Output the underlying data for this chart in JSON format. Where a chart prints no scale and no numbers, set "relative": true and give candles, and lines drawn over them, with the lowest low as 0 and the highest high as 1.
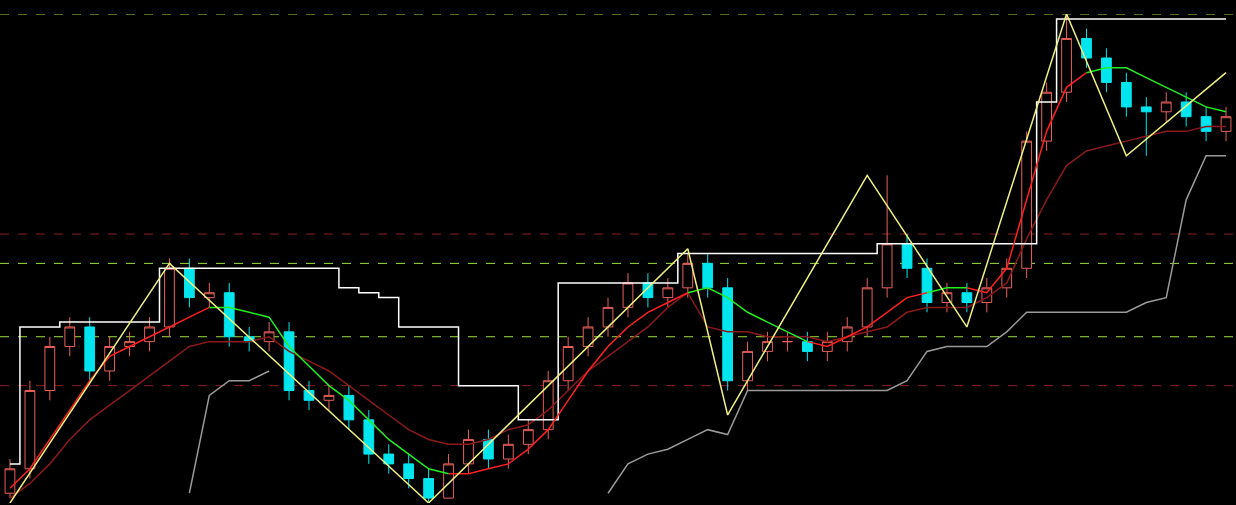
{
  "chart_data": {
    "type": "candlestick",
    "relative": true,
    "grid": false,
    "categories": [
      null,
      null,
      null,
      null,
      null,
      null,
      null,
      null,
      null,
      null,
      null,
      null,
      null,
      null,
      null,
      null,
      null,
      null,
      null,
      null,
      null,
      null,
      null,
      null,
      null,
      null,
      null,
      null,
      null,
      null,
      null,
      null,
      null,
      null,
      null,
      null,
      null,
      null,
      null,
      null,
      null,
      null,
      null,
      null,
      null,
      null,
      null,
      null,
      null,
      null,
      null,
      null,
      null,
      null,
      null,
      null,
      null,
      null,
      null,
      null,
      null,
      null
    ],
    "ohlc": [
      [
        0.02,
        0.09,
        0.01,
        0.07
      ],
      [
        0.07,
        0.25,
        0.05,
        0.23
      ],
      [
        0.23,
        0.34,
        0.21,
        0.32
      ],
      [
        0.32,
        0.38,
        0.3,
        0.36
      ],
      [
        0.36,
        0.38,
        0.25,
        0.27
      ],
      [
        0.27,
        0.34,
        0.25,
        0.32
      ],
      [
        0.32,
        0.35,
        0.3,
        0.33
      ],
      [
        0.33,
        0.38,
        0.31,
        0.36
      ],
      [
        0.36,
        0.5,
        0.34,
        0.48
      ],
      [
        0.48,
        0.5,
        0.4,
        0.42
      ],
      [
        0.42,
        0.45,
        0.4,
        0.43
      ],
      [
        0.43,
        0.45,
        0.32,
        0.34
      ],
      [
        0.34,
        0.36,
        0.31,
        0.33
      ],
      [
        0.33,
        0.37,
        0.31,
        0.35
      ],
      [
        0.35,
        0.37,
        0.21,
        0.23
      ],
      [
        0.23,
        0.25,
        0.19,
        0.21
      ],
      [
        0.21,
        0.24,
        0.19,
        0.22
      ],
      [
        0.22,
        0.24,
        0.15,
        0.17
      ],
      [
        0.17,
        0.19,
        0.08,
        0.1
      ],
      [
        0.1,
        0.12,
        0.06,
        0.08
      ],
      [
        0.08,
        0.1,
        0.03,
        0.05
      ],
      [
        0.05,
        0.07,
        0.0,
        0.01
      ],
      [
        0.01,
        0.1,
        0.01,
        0.08
      ],
      [
        0.08,
        0.15,
        0.06,
        0.13
      ],
      [
        0.13,
        0.15,
        0.07,
        0.09
      ],
      [
        0.09,
        0.14,
        0.07,
        0.12
      ],
      [
        0.12,
        0.17,
        0.1,
        0.15
      ],
      [
        0.15,
        0.27,
        0.13,
        0.25
      ],
      [
        0.25,
        0.34,
        0.23,
        0.32
      ],
      [
        0.32,
        0.38,
        0.3,
        0.36
      ],
      [
        0.36,
        0.42,
        0.34,
        0.4
      ],
      [
        0.4,
        0.47,
        0.38,
        0.45
      ],
      [
        0.45,
        0.47,
        0.4,
        0.42
      ],
      [
        0.42,
        0.46,
        0.4,
        0.44
      ],
      [
        0.44,
        0.51,
        0.42,
        0.49
      ],
      [
        0.49,
        0.51,
        0.42,
        0.44
      ],
      [
        0.44,
        0.46,
        0.23,
        0.25
      ],
      [
        0.25,
        0.33,
        0.23,
        0.31
      ],
      [
        0.31,
        0.35,
        0.29,
        0.33
      ],
      [
        0.33,
        0.35,
        0.31,
        0.33
      ],
      [
        0.33,
        0.35,
        0.29,
        0.31
      ],
      [
        0.31,
        0.35,
        0.29,
        0.33
      ],
      [
        0.33,
        0.38,
        0.31,
        0.36
      ],
      [
        0.36,
        0.46,
        0.34,
        0.44
      ],
      [
        0.44,
        0.67,
        0.42,
        0.53
      ],
      [
        0.53,
        0.55,
        0.46,
        0.48
      ],
      [
        0.48,
        0.5,
        0.39,
        0.41
      ],
      [
        0.41,
        0.45,
        0.39,
        0.43
      ],
      [
        0.43,
        0.45,
        0.39,
        0.41
      ],
      [
        0.41,
        0.46,
        0.39,
        0.44
      ],
      [
        0.44,
        0.5,
        0.42,
        0.48
      ],
      [
        0.48,
        0.76,
        0.46,
        0.74
      ],
      [
        0.74,
        0.86,
        0.72,
        0.84
      ],
      [
        0.84,
        1.0,
        0.82,
        0.95
      ],
      [
        0.95,
        0.97,
        0.89,
        0.91
      ],
      [
        0.91,
        0.93,
        0.84,
        0.86
      ],
      [
        0.86,
        0.88,
        0.79,
        0.81
      ],
      [
        0.81,
        0.83,
        0.71,
        0.8
      ],
      [
        0.8,
        0.84,
        0.78,
        0.82
      ],
      [
        0.82,
        0.84,
        0.77,
        0.79
      ],
      [
        0.79,
        0.81,
        0.74,
        0.76
      ],
      [
        0.76,
        0.81,
        0.74,
        0.79
      ]
    ],
    "colors": [
      "#e8605a",
      "#e8605a",
      "#e8605a",
      "#e8605a",
      "#00e5ee",
      "#e8605a",
      "#e8605a",
      "#e8605a",
      "#e8605a",
      "#00e5ee",
      "#e8605a",
      "#00e5ee",
      "#00e5ee",
      "#e8605a",
      "#00e5ee",
      "#00e5ee",
      "#e8605a",
      "#00e5ee",
      "#00e5ee",
      "#00e5ee",
      "#00e5ee",
      "#00e5ee",
      "#e8605a",
      "#e8605a",
      "#00e5ee",
      "#e8605a",
      "#e8605a",
      "#e8605a",
      "#e8605a",
      "#e8605a",
      "#e8605a",
      "#e8605a",
      "#00e5ee",
      "#e8605a",
      "#e8605a",
      "#00e5ee",
      "#00e5ee",
      "#e8605a",
      "#e8605a",
      "#e8605a",
      "#00e5ee",
      "#e8605a",
      "#e8605a",
      "#e8605a",
      "#e8605a",
      "#00e5ee",
      "#00e5ee",
      "#e8605a",
      "#00e5ee",
      "#e8605a",
      "#e8605a",
      "#e8605a",
      "#e8605a",
      "#e8605a",
      "#00e5ee",
      "#00e5ee",
      "#00e5ee",
      "#00e5ee",
      "#e8605a",
      "#00e5ee",
      "#00e5ee",
      "#e8605a"
    ],
    "series": [
      {
        "type": "line",
        "color": "#8b1a1a",
        "values": [
          0.01,
          0.04,
          0.08,
          0.13,
          0.17,
          0.2,
          0.23,
          0.26,
          0.29,
          0.32,
          0.33,
          0.33,
          0.33,
          0.34,
          0.31,
          0.29,
          0.27,
          0.24,
          0.21,
          0.18,
          0.15,
          0.13,
          0.12,
          0.12,
          0.13,
          0.15,
          0.16,
          0.19,
          0.23,
          0.27,
          0.3,
          0.33,
          0.36,
          0.4,
          0.43,
          0.36,
          0.35,
          0.35,
          0.34,
          0.34,
          0.34,
          0.33,
          0.34,
          0.35,
          0.36,
          0.39,
          0.4,
          0.4,
          0.4,
          0.42,
          0.45,
          0.54,
          0.62,
          0.69,
          0.72,
          0.73,
          0.74,
          0.75,
          0.76,
          0.76,
          0.77,
          0.77
        ]
      },
      {
        "type": "line",
        "color": "#9a9a9a",
        "values": [
          null,
          null,
          null,
          null,
          null,
          null,
          null,
          null,
          null,
          0.02,
          0.22,
          0.25,
          0.25,
          0.27,
          null,
          null,
          null,
          null,
          null,
          null,
          null,
          null,
          null,
          null,
          null,
          null,
          null,
          null,
          null,
          null,
          0.02,
          0.08,
          0.1,
          0.11,
          0.13,
          0.15,
          0.14,
          0.23,
          0.23,
          0.23,
          0.23,
          0.23,
          0.23,
          0.23,
          0.23,
          0.25,
          0.31,
          0.32,
          0.32,
          0.32,
          0.35,
          0.39,
          0.39,
          0.39,
          0.39,
          0.39,
          0.39,
          0.41,
          0.42,
          0.62,
          0.71,
          0.71
        ]
      },
      {
        "type": "step",
        "color": "#ffffff",
        "values": [
          0.08,
          0.36,
          0.36,
          0.37,
          0.37,
          0.37,
          0.37,
          0.37,
          0.48,
          0.48,
          0.48,
          0.48,
          0.48,
          0.48,
          0.48,
          0.48,
          0.48,
          0.44,
          0.43,
          0.42,
          0.36,
          0.36,
          0.36,
          0.24,
          0.24,
          0.24,
          0.17,
          0.17,
          0.45,
          0.45,
          0.45,
          0.45,
          0.45,
          0.45,
          0.51,
          0.51,
          0.51,
          0.51,
          0.51,
          0.51,
          0.51,
          0.51,
          0.51,
          0.51,
          0.53,
          0.53,
          0.53,
          0.53,
          0.53,
          0.53,
          0.53,
          0.53,
          0.82,
          0.99,
          0.99,
          0.99,
          0.99,
          0.99,
          0.99,
          0.99,
          0.99,
          0.99
        ]
      },
      {
        "type": "line",
        "color": "#ff2020",
        "values": [
          0.03,
          0.07,
          0.13,
          0.19,
          0.25,
          0.3,
          0.32,
          0.34,
          0.36,
          0.38,
          0.4,
          null,
          null,
          null,
          null,
          null,
          null,
          null,
          null,
          null,
          null,
          null,
          0.06,
          0.06,
          0.07,
          0.08,
          0.11,
          0.15,
          0.21,
          0.27,
          0.32,
          0.36,
          0.39,
          0.41,
          0.43,
          null,
          null,
          null,
          null,
          null,
          0.33,
          0.32,
          0.34,
          0.36,
          0.39,
          0.42,
          0.43,
          null,
          0.44,
          0.43,
          0.48,
          0.62,
          0.76,
          0.85,
          0.88,
          null,
          null,
          null,
          null,
          null,
          null,
          null
        ]
      },
      {
        "type": "line",
        "color": "#22ee22",
        "values": [
          null,
          null,
          null,
          null,
          null,
          null,
          null,
          null,
          null,
          null,
          0.4,
          0.4,
          0.39,
          0.38,
          0.32,
          0.28,
          0.24,
          0.21,
          0.17,
          0.13,
          0.1,
          0.07,
          0.06,
          null,
          null,
          null,
          null,
          null,
          null,
          null,
          null,
          null,
          null,
          null,
          0.43,
          0.44,
          0.42,
          0.39,
          0.37,
          0.35,
          0.33,
          null,
          null,
          null,
          null,
          null,
          0.43,
          0.44,
          0.44,
          null,
          null,
          null,
          null,
          null,
          0.88,
          0.89,
          0.89,
          0.87,
          0.85,
          0.83,
          0.81,
          0.8
        ]
      },
      {
        "type": "line",
        "color": "#f0f080",
        "values": [
          0.0,
          null,
          null,
          null,
          null,
          null,
          null,
          null,
          0.49,
          null,
          null,
          null,
          null,
          null,
          null,
          null,
          null,
          null,
          null,
          null,
          null,
          0.0,
          null,
          null,
          null,
          null,
          null,
          null,
          null,
          null,
          null,
          null,
          null,
          null,
          0.52,
          null,
          0.18,
          null,
          null,
          null,
          null,
          null,
          null,
          0.67,
          null,
          null,
          null,
          null,
          0.36,
          null,
          null,
          null,
          null,
          1.0,
          null,
          null,
          0.71,
          null,
          null,
          null,
          null,
          0.88
        ]
      }
    ],
    "ref_lines": [
      {
        "axis": "y",
        "value": 0.55,
        "color": "#8b2020",
        "line_style": "dashed"
      },
      {
        "axis": "y",
        "value": 0.24,
        "color": "#8b2020",
        "line_style": "dashed"
      },
      {
        "axis": "y",
        "value": 0.34,
        "color": "#a0e040",
        "line_style": "dashed"
      },
      {
        "axis": "y",
        "value": 0.49,
        "color": "#a0e040",
        "line_style": "dashed"
      },
      {
        "axis": "y",
        "value": 1.0,
        "color": "#a0e040",
        "line_style": "dashed"
      }
    ]
  }
}
